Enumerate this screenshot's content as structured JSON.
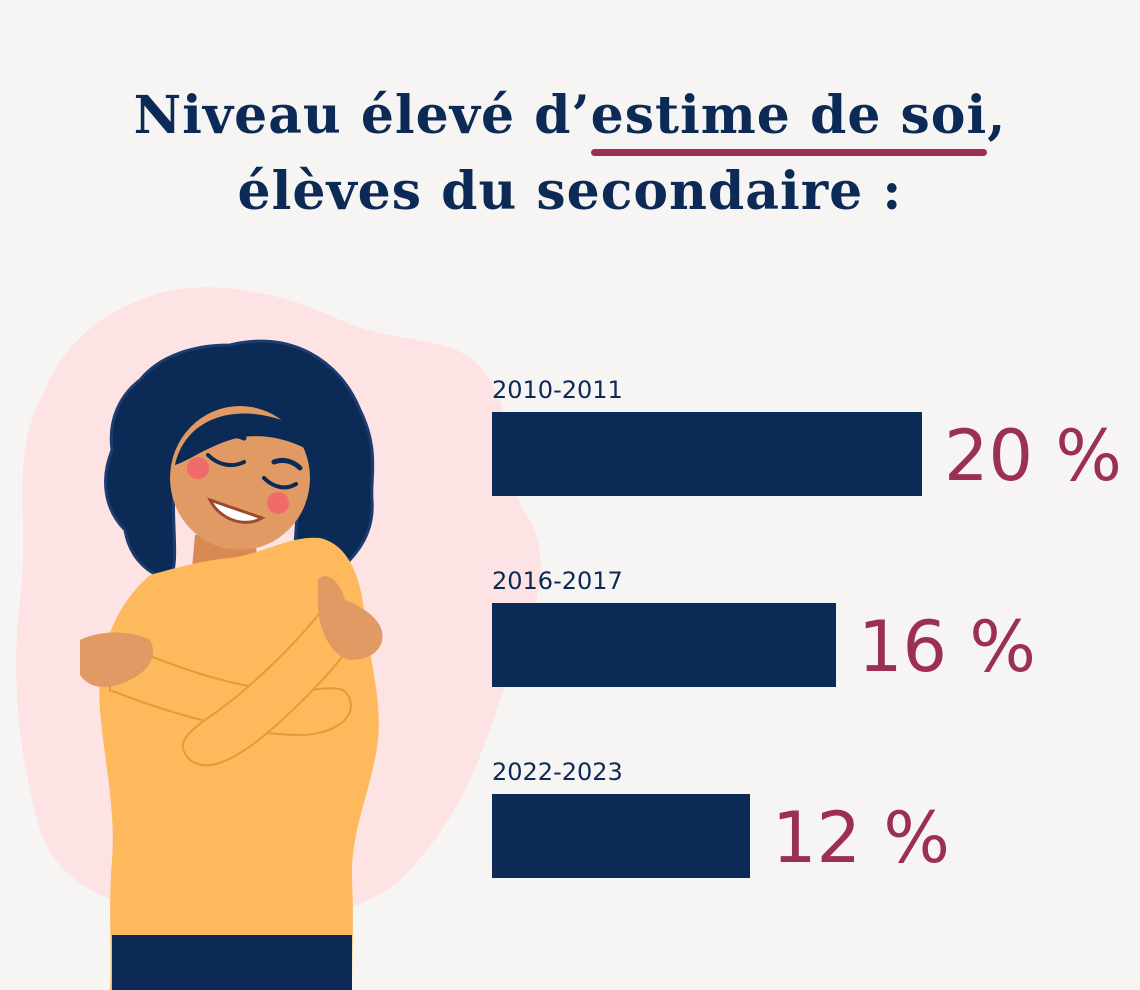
{
  "title": {
    "prefix": "Niveau élevé d’",
    "underlined": "estime de soi",
    "suffix": ",",
    "line2": "élèves du secondaire :"
  },
  "colors": {
    "bar": "#0b2a55",
    "value": "#9b2f57",
    "label": "#0b2a55",
    "accent_underline": "#9b2f57",
    "blob": "#fde3e4",
    "sweater": "#fdb95c"
  },
  "chart_data": {
    "type": "bar",
    "orientation": "horizontal",
    "categories": [
      "2010-2011",
      "2016-2017",
      "2022-2023"
    ],
    "values": [
      20,
      16,
      12
    ],
    "value_suffix": " %",
    "xlim": [
      0,
      20
    ],
    "grid": false
  }
}
